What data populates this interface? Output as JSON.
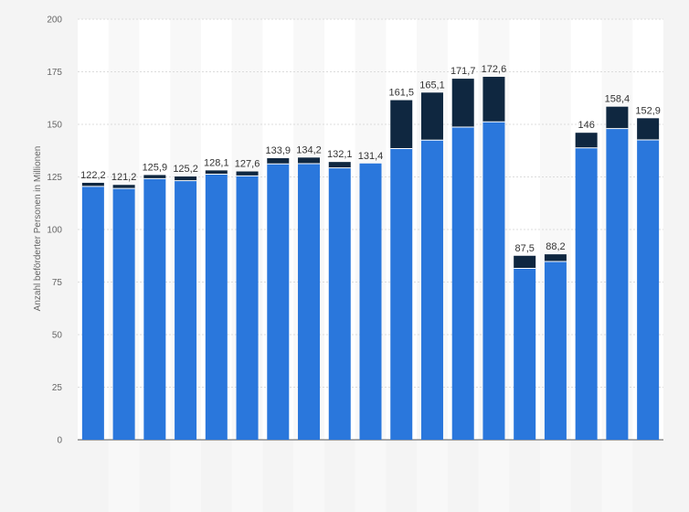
{
  "chart_data": {
    "type": "bar",
    "stacked": true,
    "title": "",
    "xlabel": "",
    "ylabel": "Anzahl beförderter Personen in Millionen",
    "ylim": [
      0,
      200
    ],
    "yticks": [
      0,
      25,
      50,
      75,
      100,
      125,
      150,
      175,
      200
    ],
    "grid": true,
    "legend": "none",
    "categories": [
      "",
      "",
      "",
      "",
      "",
      "",
      "",
      "",
      "",
      "",
      "",
      "",
      "",
      "",
      "",
      "",
      "",
      "",
      ""
    ],
    "series": [
      {
        "color": "#2a77dc",
        "values": [
          120.5,
          119.5,
          124.2,
          123.2,
          126.3,
          125.5,
          131.2,
          131.3,
          129.3,
          131.4,
          138.5,
          142.5,
          148.7,
          151.2,
          81.5,
          84.8,
          138.8,
          148.0,
          142.6
        ]
      },
      {
        "color": "#0f2740",
        "values": [
          1.7,
          1.7,
          1.7,
          2.0,
          1.8,
          2.1,
          2.7,
          2.9,
          2.8,
          0,
          23.0,
          22.6,
          23.0,
          21.4,
          6.0,
          3.4,
          7.2,
          10.4,
          10.3
        ]
      }
    ],
    "totals": [
      "122,2",
      "121,2",
      "125,9",
      "125,2",
      "128,1",
      "127,6",
      "133,9",
      "134,2",
      "132,1",
      "131,4",
      "161,5",
      "165,1",
      "171,7",
      "172,6",
      "87,5",
      "88,2",
      "146",
      "158,4",
      "152,9"
    ]
  }
}
